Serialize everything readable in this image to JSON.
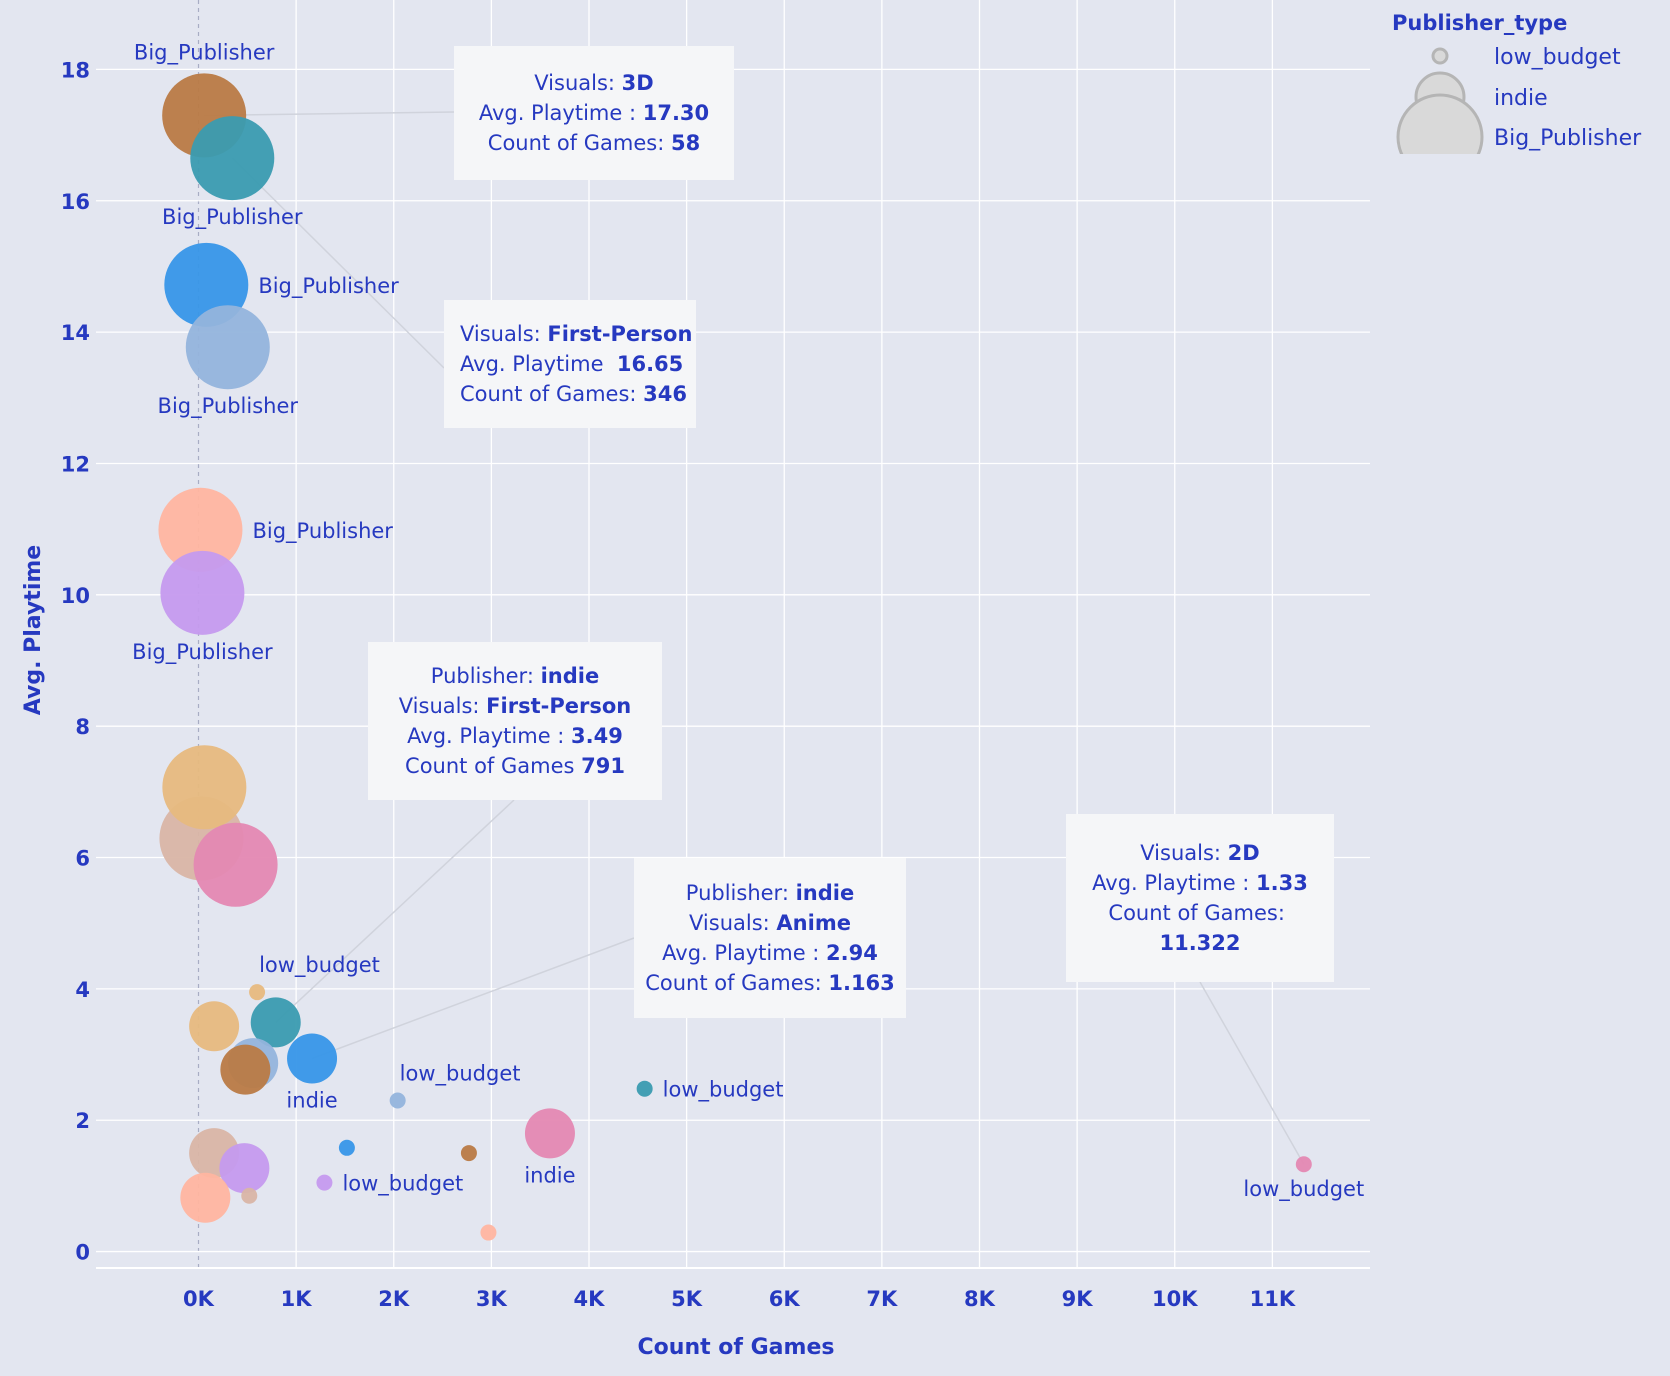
{
  "chart_data": {
    "type": "scatter",
    "xlabel": "Count of Games",
    "ylabel": "Avg. Playtime",
    "xlim": [
      -1050,
      12000
    ],
    "ylim": [
      -0.25,
      18.6
    ],
    "xticks": [
      0,
      1000,
      2000,
      3000,
      4000,
      5000,
      6000,
      7000,
      8000,
      9000,
      10000,
      11000
    ],
    "xtick_labels": [
      "0K",
      "1K",
      "2K",
      "3K",
      "4K",
      "5K",
      "6K",
      "7K",
      "8K",
      "9K",
      "10K",
      "11K"
    ],
    "yticks": [
      0,
      2,
      4,
      6,
      8,
      10,
      12,
      14,
      16,
      18
    ],
    "ytick_labels": [
      "0",
      "2",
      "4",
      "6",
      "8",
      "10",
      "12",
      "14",
      "16",
      "18"
    ],
    "grid": true,
    "size_legend": {
      "title": "Publisher_type",
      "entries": [
        "low_budget",
        "indie",
        "Big_Publisher"
      ]
    },
    "points": [
      {
        "x": 58,
        "y": 17.3,
        "color": "#b97a45",
        "size": "Big_Publisher",
        "label": "Big_Publisher",
        "label_pos": "above"
      },
      {
        "x": 346,
        "y": 16.65,
        "color": "#3a9bb0",
        "size": "Big_Publisher",
        "label": "Big_Publisher",
        "label_pos": "below"
      },
      {
        "x": 80,
        "y": 14.72,
        "color": "#3796e8",
        "size": "Big_Publisher",
        "label": "Big_Publisher",
        "label_pos": "right"
      },
      {
        "x": 300,
        "y": 13.77,
        "color": "#94b4dc",
        "size": "Big_Publisher",
        "label": "Big_Publisher",
        "label_pos": "below"
      },
      {
        "x": 20,
        "y": 10.99,
        "color": "#ffb5a0",
        "size": "Big_Publisher",
        "label": "Big_Publisher",
        "label_pos": "right"
      },
      {
        "x": 40,
        "y": 10.03,
        "color": "#c59aee",
        "size": "Big_Publisher",
        "label": "Big_Publisher",
        "label_pos": "below"
      },
      {
        "x": 30,
        "y": 6.29,
        "color": "#d9b5a5",
        "size": "Big_Publisher",
        "label": "",
        "label_pos": "none"
      },
      {
        "x": 60,
        "y": 7.07,
        "color": "#e7b97e",
        "size": "Big_Publisher",
        "label": "",
        "label_pos": "none"
      },
      {
        "x": 380,
        "y": 5.89,
        "color": "#e488b2",
        "size": "Big_Publisher",
        "label": "",
        "label_pos": "none"
      },
      {
        "x": 600,
        "y": 3.95,
        "color": "#e7b97e",
        "size": "low_budget",
        "label": "low_budget",
        "label_pos": "aboveright"
      },
      {
        "x": 160,
        "y": 3.43,
        "color": "#e7b97e",
        "size": "indie",
        "label": "",
        "label_pos": "none"
      },
      {
        "x": 791,
        "y": 3.49,
        "color": "#3a9bb0",
        "size": "indie",
        "label": "",
        "label_pos": "none"
      },
      {
        "x": 560,
        "y": 2.87,
        "color": "#94b4dc",
        "size": "indie",
        "label": "",
        "label_pos": "none"
      },
      {
        "x": 480,
        "y": 2.77,
        "color": "#b97a45",
        "size": "indie",
        "label": "",
        "label_pos": "none"
      },
      {
        "x": 1163,
        "y": 2.94,
        "color": "#3796e8",
        "size": "indie",
        "label": "indie",
        "label_pos": "below"
      },
      {
        "x": 2040,
        "y": 2.3,
        "color": "#94b4dc",
        "size": "low_budget",
        "label": "low_budget",
        "label_pos": "aboveright"
      },
      {
        "x": 4570,
        "y": 2.48,
        "color": "#3a9bb0",
        "size": "low_budget",
        "label": "low_budget",
        "label_pos": "right"
      },
      {
        "x": 1520,
        "y": 1.58,
        "color": "#3796e8",
        "size": "low_budget",
        "label": "",
        "label_pos": "none"
      },
      {
        "x": 2770,
        "y": 1.5,
        "color": "#b97a45",
        "size": "low_budget",
        "label": "",
        "label_pos": "none"
      },
      {
        "x": 3600,
        "y": 1.8,
        "color": "#e488b2",
        "size": "indie",
        "label": "indie",
        "label_pos": "below"
      },
      {
        "x": 160,
        "y": 1.5,
        "color": "#d9b5a5",
        "size": "indie",
        "label": "",
        "label_pos": "none"
      },
      {
        "x": 470,
        "y": 1.27,
        "color": "#c59aee",
        "size": "indie",
        "label": "",
        "label_pos": "none"
      },
      {
        "x": 70,
        "y": 0.82,
        "color": "#ffb5a0",
        "size": "indie",
        "label": "",
        "label_pos": "none"
      },
      {
        "x": 520,
        "y": 0.85,
        "color": "#d9b5a5",
        "size": "low_budget",
        "label": "",
        "label_pos": "none"
      },
      {
        "x": 1290,
        "y": 1.05,
        "color": "#c59aee",
        "size": "low_budget",
        "label": "low_budget",
        "label_pos": "right"
      },
      {
        "x": 2970,
        "y": 0.29,
        "color": "#ffb5a0",
        "size": "low_budget",
        "label": "",
        "label_pos": "none"
      },
      {
        "x": 11322,
        "y": 1.33,
        "color": "#e488b2",
        "size": "low_budget",
        "label": "low_budget",
        "label_pos": "below"
      }
    ],
    "annotations": [
      {
        "lines": [
          [
            "Visuals: ",
            "3D"
          ],
          [
            "Avg. Playtime : ",
            "17.30"
          ],
          [
            "Count of Games: ",
            "58"
          ]
        ]
      },
      {
        "lines": [
          [
            "Visuals: ",
            "First-Person"
          ],
          [
            "Avg. Playtime  ",
            "16.65"
          ],
          [
            "Count of Games: ",
            "346"
          ]
        ]
      },
      {
        "lines": [
          [
            "Publisher: ",
            "indie"
          ],
          [
            "Visuals: ",
            "First-Person"
          ],
          [
            "Avg. Playtime : ",
            "3.49"
          ],
          [
            "Count of Games ",
            "791"
          ]
        ]
      },
      {
        "lines": [
          [
            "Publisher: ",
            "indie"
          ],
          [
            "Visuals: ",
            "Anime"
          ],
          [
            "Avg. Playtime : ",
            "2.94"
          ],
          [
            "Count of Games: ",
            "1.163"
          ]
        ]
      },
      {
        "lines": [
          [
            "Visuals: ",
            "2D"
          ],
          [
            "Avg. Playtime : ",
            "1.33"
          ],
          [
            "Count of Games: ",
            ""
          ],
          [
            "",
            "11.322"
          ]
        ]
      }
    ]
  }
}
